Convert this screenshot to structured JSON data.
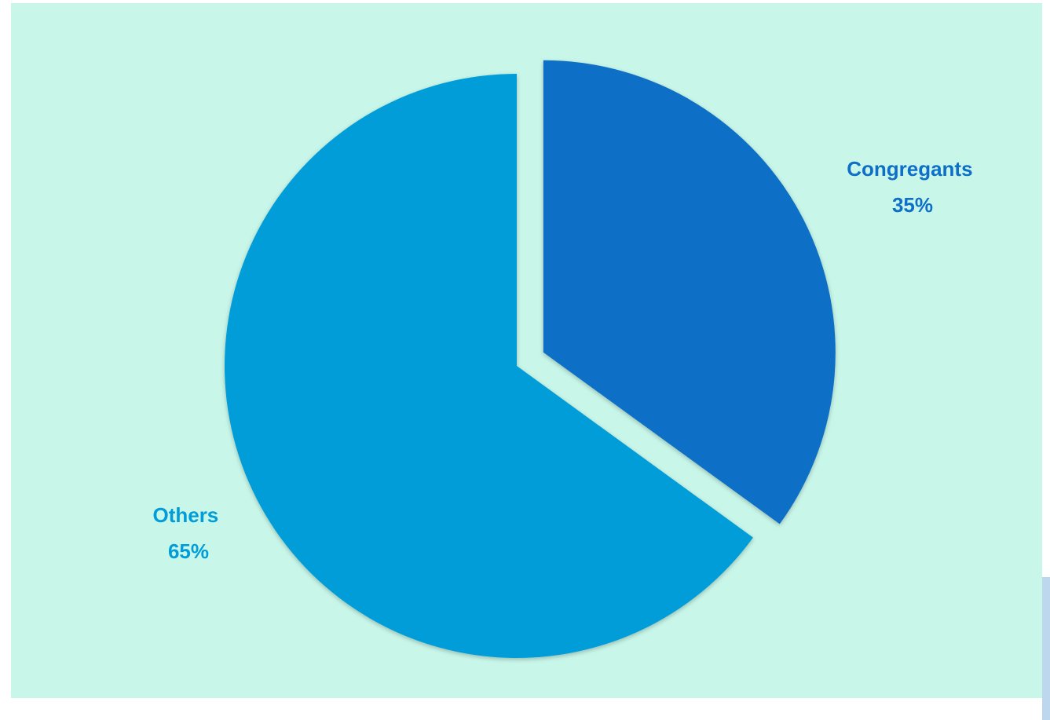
{
  "chart_data": {
    "type": "pie",
    "title": "",
    "slices": [
      {
        "label": "Congregants",
        "value": 35,
        "display": "35%",
        "color": "#0f6fc6",
        "exploded": true
      },
      {
        "label": "Others",
        "value": 65,
        "display": "65%",
        "color": "#009dd9",
        "exploded": false
      }
    ],
    "legend": "none",
    "start_angle_deg": 0,
    "direction": "clockwise"
  },
  "colors": {
    "background": "#c8f7ea",
    "accent": "#bdd7ee"
  }
}
